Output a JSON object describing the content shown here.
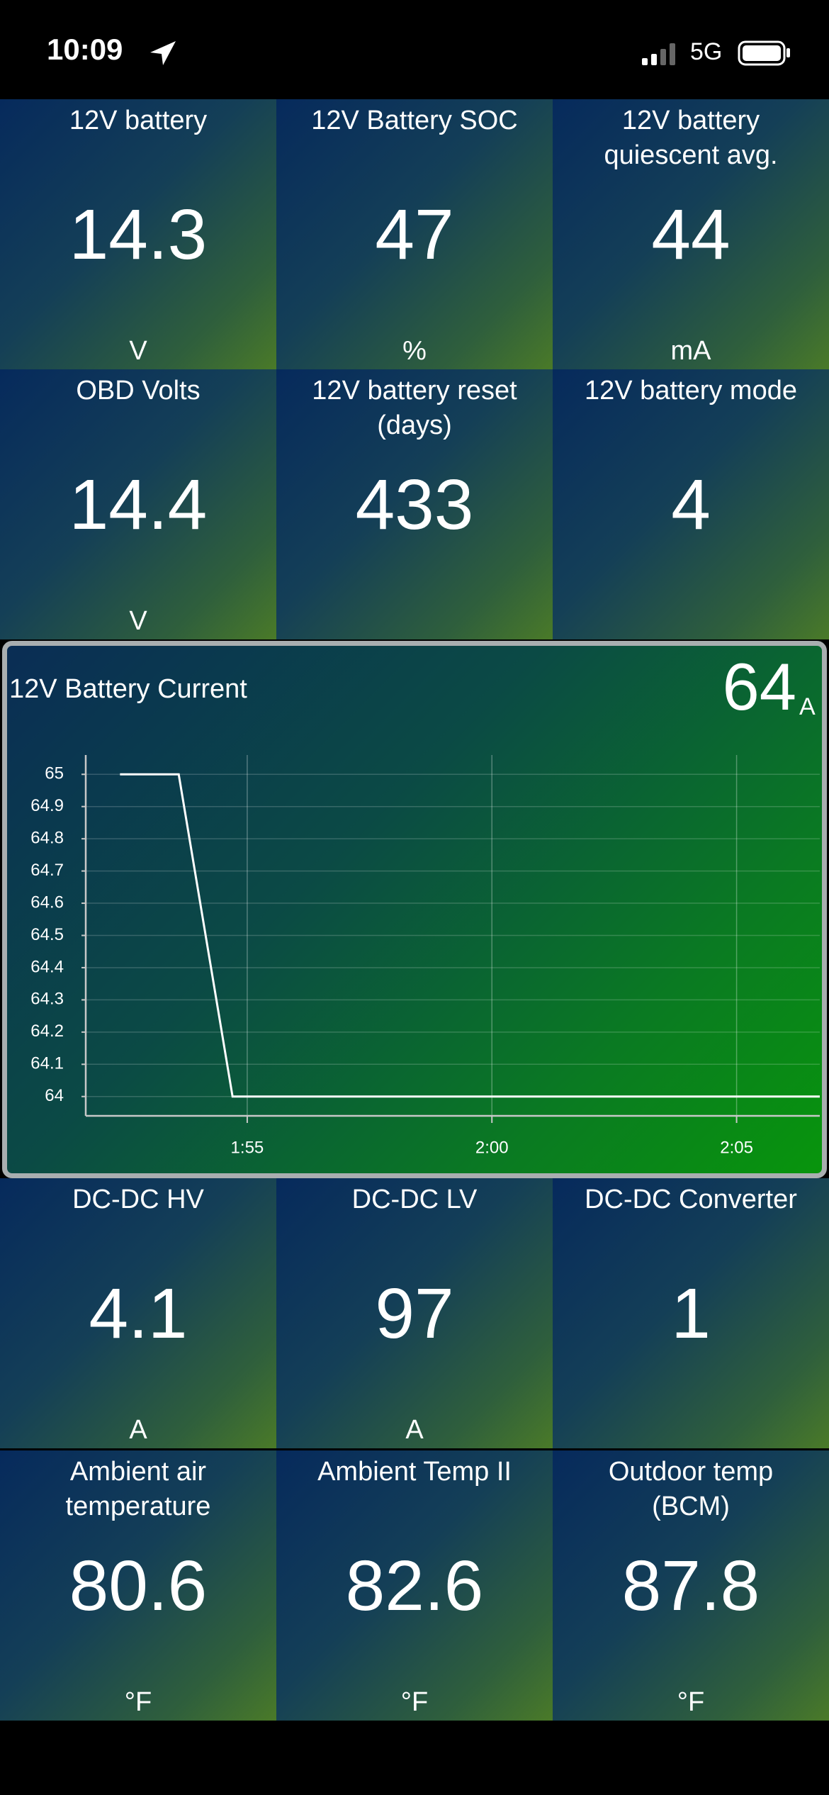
{
  "status_bar": {
    "time": "10:09",
    "network": "5G"
  },
  "tiles_top": [
    {
      "label": "12V battery",
      "value": 14.3,
      "unit": "V"
    },
    {
      "label": "12V Battery SOC",
      "value": 47,
      "unit": "%"
    },
    {
      "label": "12V battery quiescent avg.",
      "value": 44,
      "unit": "mA"
    },
    {
      "label": "OBD Volts",
      "value": 14.4,
      "unit": "V"
    },
    {
      "label": "12V battery reset (days)",
      "value": 433
    },
    {
      "label": "12V battery mode",
      "value": 4
    }
  ],
  "chart_data": {
    "type": "line",
    "title": "12V Battery Current",
    "current_value": 64,
    "current_unit": "A",
    "x": [
      112.4,
      113.6,
      114.7,
      126.7
    ],
    "values": [
      65,
      65,
      64,
      64
    ],
    "color": "#ffffff",
    "xlim": [
      111.7,
      126.7
    ],
    "ylim": [
      63.94,
      65.06
    ],
    "xticks": [
      {
        "value": 115,
        "label": "1:55"
      },
      {
        "value": 120,
        "label": "2:00"
      },
      {
        "value": 125,
        "label": "2:05"
      }
    ],
    "yticks": [
      64,
      64.1,
      64.2,
      64.3,
      64.4,
      64.5,
      64.6,
      64.7,
      64.8,
      64.9,
      65
    ],
    "grid": true
  },
  "tiles_bottom": [
    {
      "label": "DC-DC HV",
      "value": 4.1,
      "unit": "A"
    },
    {
      "label": "DC-DC LV",
      "value": 97,
      "unit": "A"
    },
    {
      "label": "DC-DC Converter",
      "value": 1
    },
    {
      "label": "Ambient air temperature",
      "value": 80.6,
      "unit": "°F"
    },
    {
      "label": "Ambient Temp II",
      "value": 82.6,
      "unit": "°F"
    },
    {
      "label": "Outdoor temp (BCM)",
      "value": 87.8,
      "unit": "°F"
    }
  ]
}
